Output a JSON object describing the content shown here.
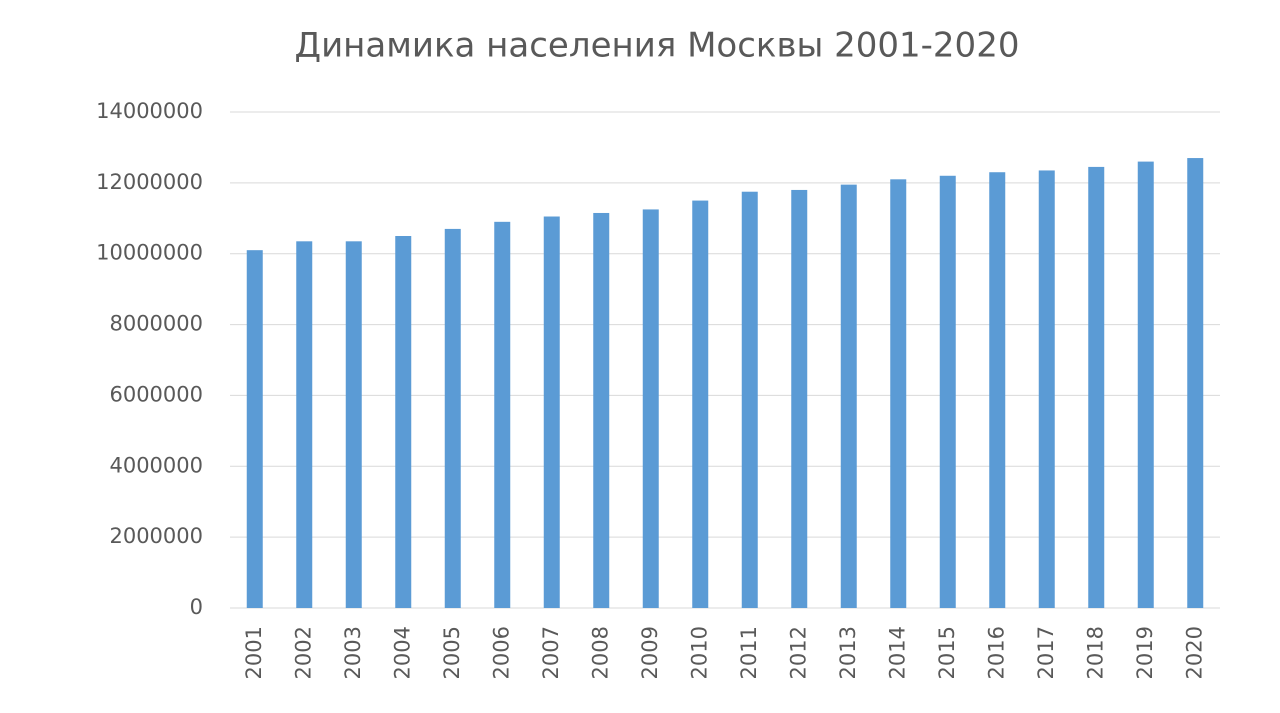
{
  "chart_data": {
    "type": "bar",
    "title": "Динамика населения Москвы 2001-2020",
    "categories": [
      "2001",
      "2002",
      "2003",
      "2004",
      "2005",
      "2006",
      "2007",
      "2008",
      "2009",
      "2010",
      "2011",
      "2012",
      "2013",
      "2014",
      "2015",
      "2016",
      "2017",
      "2018",
      "2019",
      "2020"
    ],
    "values": [
      10100000,
      10350000,
      10350000,
      10500000,
      10700000,
      10900000,
      11050000,
      11150000,
      11250000,
      11500000,
      11750000,
      11800000,
      11950000,
      12100000,
      12200000,
      12300000,
      12350000,
      12450000,
      12600000,
      12700000
    ],
    "color": "#5b9bd5",
    "ylim": [
      0,
      14000000
    ],
    "yticks": [
      0,
      2000000,
      4000000,
      6000000,
      8000000,
      10000000,
      12000000,
      14000000
    ],
    "grid": true
  }
}
